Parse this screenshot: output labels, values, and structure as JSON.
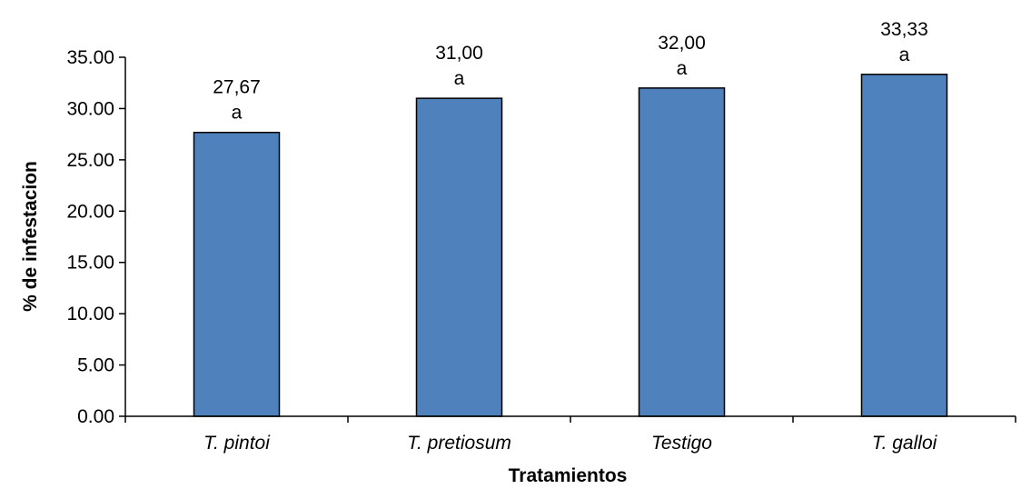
{
  "chart_data": {
    "type": "bar",
    "title": "",
    "xlabel": "Tratamientos",
    "ylabel": "% de infestacion",
    "categories": [
      "T. pintoi",
      "T. pretiosum",
      "Testigo",
      "T. galloi"
    ],
    "values": [
      27.67,
      31.0,
      32.0,
      33.33
    ],
    "value_labels": [
      "27,67",
      "31,00",
      "32,00",
      "33,33"
    ],
    "group_letters": [
      "a",
      "a",
      "a",
      "a"
    ],
    "yticks": [
      "0.00",
      "5.00",
      "10.00",
      "15.00",
      "20.00",
      "25.00",
      "30.00",
      "35.00"
    ],
    "ytick_values": [
      0,
      5,
      10,
      15,
      20,
      25,
      30,
      35
    ],
    "ylim": [
      0,
      35
    ],
    "grid": false,
    "legend": "none",
    "colors": {
      "bar_fill": "#4f81bd",
      "bar_stroke": "#000000",
      "axis": "#000000"
    }
  }
}
